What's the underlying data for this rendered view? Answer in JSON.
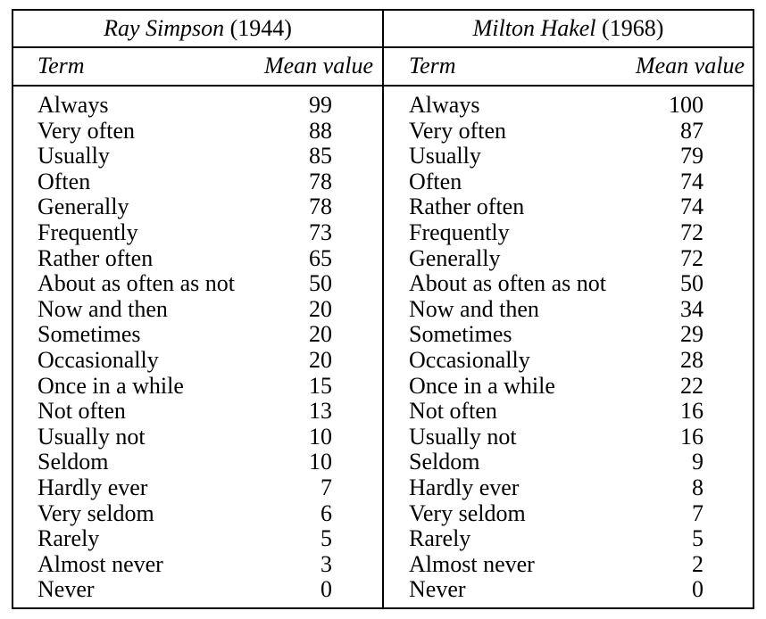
{
  "left_block": {
    "author": "Ray Simpson",
    "year": "(1944)",
    "col_term": "Term",
    "col_mean": "Mean value",
    "rows": [
      {
        "term": "Always",
        "value": "99"
      },
      {
        "term": "Very often",
        "value": "88"
      },
      {
        "term": "Usually",
        "value": "85"
      },
      {
        "term": "Often",
        "value": "78"
      },
      {
        "term": "Generally",
        "value": "78"
      },
      {
        "term": "Frequently",
        "value": "73"
      },
      {
        "term": "Rather often",
        "value": "65"
      },
      {
        "term": "About as often as not",
        "value": "50"
      },
      {
        "term": "Now and then",
        "value": "20"
      },
      {
        "term": "Sometimes",
        "value": "20"
      },
      {
        "term": "Occasionally",
        "value": "20"
      },
      {
        "term": "Once in a while",
        "value": "15"
      },
      {
        "term": "Not often",
        "value": "13"
      },
      {
        "term": "Usually not",
        "value": "10"
      },
      {
        "term": "Seldom",
        "value": "10"
      },
      {
        "term": "Hardly ever",
        "value": "7"
      },
      {
        "term": "Very seldom",
        "value": "6"
      },
      {
        "term": "Rarely",
        "value": "5"
      },
      {
        "term": "Almost never",
        "value": "3"
      },
      {
        "term": "Never",
        "value": "0"
      }
    ]
  },
  "right_block": {
    "author": "Milton Hakel",
    "year": "(1968)",
    "col_term": "Term",
    "col_mean": "Mean value",
    "rows": [
      {
        "term": "Always",
        "value": "100"
      },
      {
        "term": "Very often",
        "value": "87"
      },
      {
        "term": "Usually",
        "value": "79"
      },
      {
        "term": "Often",
        "value": "74"
      },
      {
        "term": "Rather often",
        "value": "74"
      },
      {
        "term": "Frequently",
        "value": "72"
      },
      {
        "term": "Generally",
        "value": "72"
      },
      {
        "term": "About as often as not",
        "value": "50"
      },
      {
        "term": "Now and then",
        "value": "34"
      },
      {
        "term": "Sometimes",
        "value": "29"
      },
      {
        "term": "Occasionally",
        "value": "28"
      },
      {
        "term": "Once in a while",
        "value": "22"
      },
      {
        "term": "Not often",
        "value": "16"
      },
      {
        "term": "Usually not",
        "value": "16"
      },
      {
        "term": "Seldom",
        "value": "9"
      },
      {
        "term": "Hardly ever",
        "value": "8"
      },
      {
        "term": "Very seldom",
        "value": "7"
      },
      {
        "term": "Rarely",
        "value": "5"
      },
      {
        "term": "Almost never",
        "value": "2"
      },
      {
        "term": "Never",
        "value": "0"
      }
    ]
  }
}
